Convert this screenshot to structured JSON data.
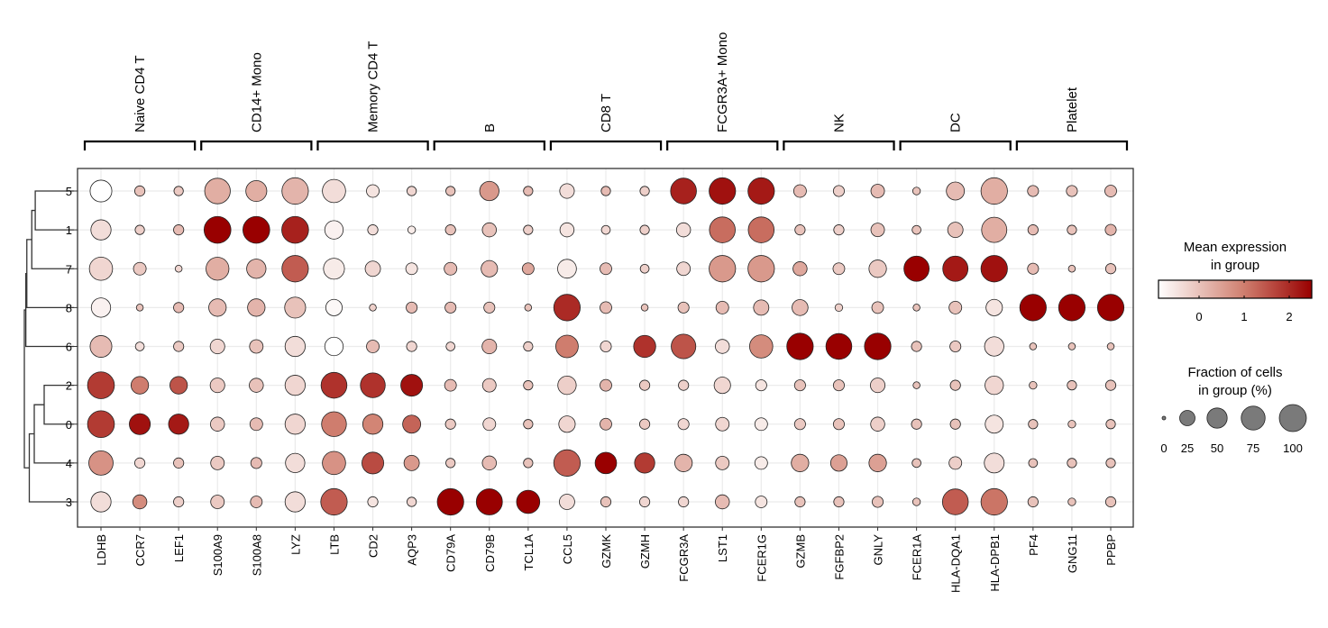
{
  "chart_data": {
    "type": "dotplot",
    "title": "",
    "genes": [
      "LDHB",
      "CCR7",
      "LEF1",
      "S100A9",
      "S100A8",
      "LYZ",
      "LTB",
      "CD2",
      "AQP3",
      "CD79A",
      "CD79B",
      "TCL1A",
      "CCL5",
      "GZMK",
      "GZMH",
      "FCGR3A",
      "LST1",
      "FCER1G",
      "GZMB",
      "FGFBP2",
      "GNLY",
      "FCER1A",
      "HLA-DQA1",
      "HLA-DPB1",
      "PF4",
      "GNG11",
      "PPBP"
    ],
    "groups": [
      "5",
      "1",
      "7",
      "8",
      "6",
      "2",
      "0",
      "4",
      "3"
    ],
    "gene_groups": [
      {
        "label": "Naive CD4 T",
        "genes": [
          "LDHB",
          "CCR7",
          "LEF1"
        ]
      },
      {
        "label": "CD14+ Mono",
        "genes": [
          "S100A9",
          "S100A8",
          "LYZ"
        ]
      },
      {
        "label": "Memory CD4 T",
        "genes": [
          "LTB",
          "CD2",
          "AQP3"
        ]
      },
      {
        "label": "B",
        "genes": [
          "CD79A",
          "CD79B",
          "TCL1A"
        ]
      },
      {
        "label": "CD8 T",
        "genes": [
          "CCL5",
          "GZMK",
          "GZMH"
        ]
      },
      {
        "label": "FCGR3A+ Mono",
        "genes": [
          "FCGR3A",
          "LST1",
          "FCER1G"
        ]
      },
      {
        "label": "NK",
        "genes": [
          "GZMB",
          "FGFBP2",
          "GNLY"
        ]
      },
      {
        "label": "DC",
        "genes": [
          "FCER1A",
          "HLA-DQA1",
          "HLA-DPB1"
        ]
      },
      {
        "label": "Platelet",
        "genes": [
          "PF4",
          "GNG11",
          "PPBP"
        ]
      }
    ],
    "dendrogram": {
      "leaf_order": [
        "5",
        "1",
        "7",
        "8",
        "6",
        "2",
        "0",
        "4",
        "3"
      ],
      "merges": [
        {
          "a": "5",
          "b": "1",
          "height": 0.78
        },
        {
          "a": "2",
          "b": "0",
          "height": 0.6
        },
        {
          "a": "(5,1)",
          "b": "7",
          "height": 0.85
        },
        {
          "a": "(2,0)",
          "b": "4",
          "height": 0.8
        },
        {
          "a": "(5,1,7)",
          "b": "8",
          "height": 0.95
        },
        {
          "a": "(5,1,7,8)",
          "b": "6",
          "height": 0.97
        },
        {
          "a": "(2,0,4)",
          "b": "3",
          "height": 0.9
        },
        {
          "a": "(5,1,7,8,6)",
          "b": "(2,0,4,3)",
          "height": 1.0
        }
      ]
    },
    "fraction_pct": [
      [
        60,
        8,
        6,
        88,
        55,
        95,
        70,
        15,
        6,
        6,
        45,
        6,
        22,
        6,
        6,
        90,
        95,
        95,
        15,
        10,
        18,
        3,
        38,
        95,
        10,
        10,
        12
      ],
      [
        50,
        6,
        8,
        98,
        98,
        98,
        40,
        8,
        3,
        8,
        20,
        6,
        20,
        5,
        6,
        20,
        90,
        90,
        8,
        8,
        18,
        5,
        25,
        85,
        8,
        6,
        10
      ],
      [
        70,
        15,
        2,
        68,
        45,
        95,
        55,
        25,
        12,
        15,
        30,
        12,
        42,
        12,
        5,
        18,
        95,
        95,
        20,
        12,
        35,
        85,
        85,
        95,
        10,
        2,
        8
      ],
      [
        45,
        2,
        8,
        35,
        35,
        55,
        30,
        2,
        10,
        10,
        10,
        2,
        95,
        12,
        2,
        10,
        15,
        25,
        28,
        3,
        12,
        2,
        15,
        30,
        95,
        95,
        95
      ],
      [
        60,
        5,
        8,
        22,
        18,
        50,
        40,
        15,
        8,
        5,
        22,
        6,
        65,
        10,
        62,
        80,
        20,
        70,
        95,
        90,
        95,
        8,
        10,
        45,
        2,
        2,
        2
      ],
      [
        98,
        35,
        35,
        22,
        20,
        50,
        90,
        82,
        60,
        12,
        18,
        6,
        40,
        12,
        8,
        8,
        30,
        10,
        10,
        10,
        22,
        2,
        8,
        40,
        3,
        6,
        8
      ],
      [
        98,
        55,
        50,
        20,
        15,
        50,
        82,
        50,
        38,
        8,
        15,
        6,
        30,
        12,
        8,
        10,
        18,
        15,
        10,
        10,
        20,
        8,
        8,
        38,
        6,
        3,
        6
      ],
      [
        78,
        8,
        8,
        18,
        10,
        45,
        70,
        60,
        25,
        6,
        20,
        6,
        95,
        58,
        50,
        35,
        18,
        15,
        35,
        30,
        35,
        5,
        15,
        48,
        5,
        6,
        6
      ],
      [
        50,
        20,
        8,
        18,
        12,
        50,
        95,
        8,
        6,
        95,
        92,
        70,
        25,
        8,
        8,
        8,
        20,
        12,
        8,
        8,
        10,
        3,
        90,
        95,
        8,
        3,
        8
      ]
    ],
    "mean_expression": [
      [
        -0.9,
        0.0,
        -0.1,
        0.3,
        0.3,
        0.2,
        -0.4,
        -0.5,
        -0.3,
        0.0,
        0.6,
        0.1,
        -0.4,
        0.1,
        -0.2,
        2.1,
        2.3,
        2.2,
        0.1,
        -0.2,
        0.1,
        0.0,
        0.1,
        0.3,
        0.1,
        0.0,
        0.1
      ],
      [
        -0.4,
        -0.2,
        0.1,
        2.5,
        2.5,
        2.1,
        -0.7,
        -0.4,
        -0.6,
        0.0,
        0.0,
        -0.2,
        -0.5,
        -0.3,
        -0.2,
        -0.4,
        1.2,
        1.2,
        0.0,
        -0.2,
        0.0,
        0.0,
        0.0,
        0.3,
        0.1,
        0.0,
        0.2
      ],
      [
        -0.3,
        -0.1,
        -0.3,
        0.3,
        0.2,
        1.4,
        -0.6,
        -0.3,
        -0.5,
        0.1,
        0.1,
        0.4,
        -0.6,
        0.1,
        -0.2,
        -0.3,
        0.6,
        0.6,
        0.4,
        -0.1,
        -0.1,
        2.5,
        2.2,
        2.3,
        0.1,
        0.0,
        0.0
      ],
      [
        -0.7,
        0.0,
        0.1,
        0.1,
        0.2,
        0.0,
        -0.8,
        -0.2,
        0.1,
        0.1,
        0.0,
        0.0,
        2.0,
        0.1,
        0.0,
        0.0,
        0.1,
        0.1,
        0.1,
        -0.2,
        0.0,
        0.0,
        0.0,
        -0.5,
        2.5,
        2.5,
        2.5
      ],
      [
        0.1,
        -0.4,
        -0.1,
        -0.3,
        0.0,
        -0.4,
        -0.9,
        0.1,
        -0.3,
        -0.3,
        0.2,
        -0.2,
        1.0,
        -0.3,
        1.9,
        1.5,
        -0.4,
        0.8,
        2.5,
        2.5,
        2.5,
        0.0,
        -0.1,
        -0.4,
        0.0,
        0.0,
        0.0
      ],
      [
        1.8,
        1.0,
        1.5,
        -0.1,
        0.0,
        -0.3,
        1.9,
        1.9,
        2.3,
        0.1,
        -0.1,
        0.0,
        -0.2,
        0.2,
        -0.1,
        -0.2,
        -0.3,
        -0.5,
        0.0,
        0.0,
        -0.2,
        0.0,
        0.0,
        -0.3,
        0.0,
        0.0,
        0.0
      ],
      [
        1.8,
        2.3,
        2.2,
        -0.1,
        0.1,
        -0.3,
        1.0,
        0.9,
        1.3,
        -0.1,
        -0.3,
        0.0,
        -0.3,
        0.2,
        -0.1,
        -0.3,
        -0.3,
        -0.6,
        -0.1,
        0.0,
        -0.2,
        0.0,
        0.0,
        -0.5,
        0.0,
        0.0,
        0.0
      ],
      [
        0.7,
        -0.3,
        0.0,
        -0.1,
        0.1,
        -0.4,
        0.7,
        1.6,
        0.6,
        -0.1,
        0.1,
        0.0,
        1.4,
        2.5,
        1.8,
        0.2,
        -0.1,
        -0.6,
        0.3,
        0.5,
        0.5,
        0.0,
        -0.2,
        -0.4,
        0.0,
        0.0,
        0.0
      ],
      [
        -0.4,
        0.8,
        -0.2,
        -0.1,
        0.1,
        -0.4,
        1.4,
        -0.5,
        -0.3,
        2.5,
        2.5,
        2.5,
        -0.4,
        0.0,
        -0.3,
        -0.3,
        0.1,
        -0.5,
        0.0,
        0.0,
        0.0,
        0.0,
        1.4,
        1.1,
        0.0,
        0.0,
        0.0
      ]
    ],
    "color_scale": {
      "title_line1": "Mean expression",
      "title_line2": "in group",
      "min": -0.9,
      "max": 2.5,
      "ticks": [
        0,
        1,
        2
      ],
      "tick_labels": [
        "0",
        "1",
        "2"
      ],
      "low_color": "#ffffff",
      "mid_color": "#d08070",
      "high_color": "#990000"
    },
    "size_scale": {
      "title_line1": "Fraction of cells",
      "title_line2": "in group (%)",
      "values": [
        0,
        25,
        50,
        75,
        100
      ],
      "labels": [
        "0",
        "25",
        "50",
        "75",
        "100"
      ],
      "legend_fill": "#7a7a7a"
    },
    "xlabel": "",
    "ylabel": "",
    "grid": true,
    "legend_position": "right"
  }
}
